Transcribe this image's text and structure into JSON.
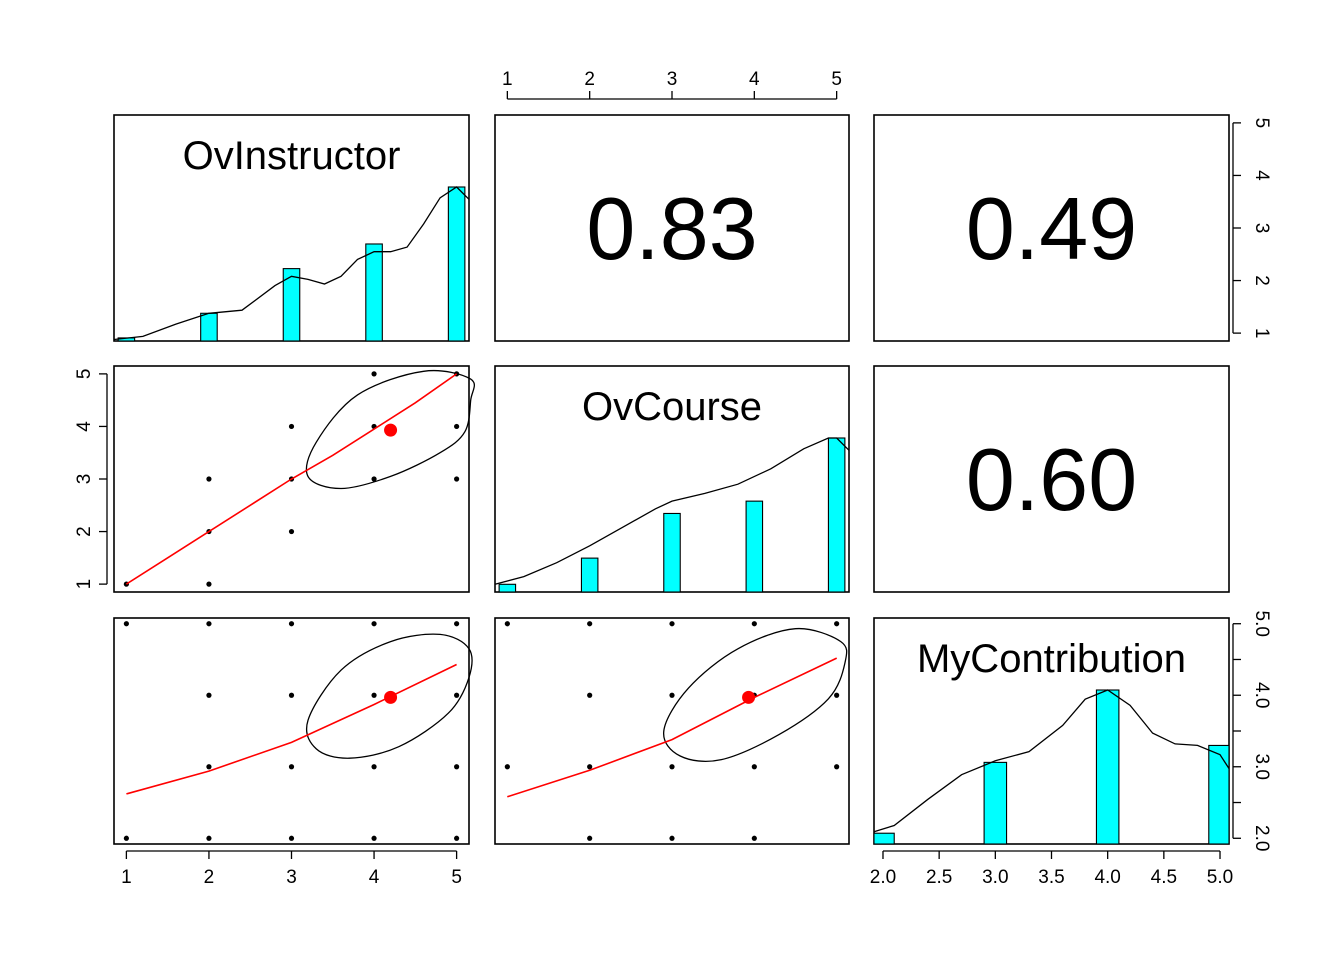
{
  "chart_data": {
    "type": "scatter",
    "layout": "scatterplot-matrix (pairs panels)",
    "variables": [
      "OvInstructor",
      "OvCourse",
      "MyContribution"
    ],
    "colors": {
      "bars": "#00ffff",
      "fit_line": "#ff0000",
      "mean_point": "#ff0000",
      "points": "#000000"
    },
    "axes": {
      "ov_ticks": [
        1,
        2,
        3,
        4,
        5
      ],
      "ov_tick_labels": [
        "1",
        "2",
        "3",
        "4",
        "5"
      ],
      "myc_ticks": [
        2.0,
        2.5,
        3.0,
        3.5,
        4.0,
        4.5,
        5.0
      ],
      "myc_tick_labels": [
        "2.0",
        "2.5",
        "3.0",
        "3.5",
        "4.0",
        "4.5",
        "5.0"
      ],
      "myc_right_ticks": [
        2.0,
        2.5,
        3.0,
        3.5,
        4.0,
        4.5,
        5.0
      ],
      "myc_right_tick_labels": [
        "2.0",
        "",
        "3.0",
        "",
        "4.0",
        "",
        "5.0"
      ],
      "ov_xlim": [
        0.85,
        5.15
      ],
      "myc_xlim": [
        1.92,
        5.08
      ]
    },
    "histograms": {
      "OvInstructor": {
        "values": [
          1,
          2,
          3,
          4,
          5
        ],
        "heights": [
          0.02,
          0.18,
          0.47,
          0.63,
          1.0
        ]
      },
      "OvCourse": {
        "values": [
          1,
          2,
          3,
          4,
          5
        ],
        "heights": [
          0.05,
          0.22,
          0.51,
          0.59,
          1.0
        ]
      },
      "MyContribution": {
        "values": [
          2,
          3,
          4,
          5
        ],
        "heights": [
          0.07,
          0.53,
          1.0,
          0.64
        ]
      }
    },
    "densities": {
      "OvInstructor": {
        "x": [
          0.85,
          1.2,
          1.6,
          2.0,
          2.4,
          2.8,
          3.0,
          3.2,
          3.4,
          3.6,
          3.8,
          4.0,
          4.2,
          4.4,
          4.6,
          4.8,
          5.0,
          5.15
        ],
        "y": [
          0.01,
          0.03,
          0.11,
          0.18,
          0.2,
          0.36,
          0.42,
          0.4,
          0.37,
          0.42,
          0.53,
          0.58,
          0.58,
          0.61,
          0.76,
          0.93,
          1.0,
          0.92
        ]
      },
      "OvCourse": {
        "x": [
          0.85,
          1.2,
          1.6,
          2.0,
          2.4,
          2.8,
          3.0,
          3.4,
          3.8,
          4.2,
          4.6,
          4.9,
          5.0,
          5.15
        ],
        "y": [
          0.05,
          0.1,
          0.19,
          0.3,
          0.42,
          0.54,
          0.59,
          0.64,
          0.7,
          0.8,
          0.93,
          1.0,
          1.0,
          0.92
        ]
      },
      "MyContribution": {
        "x": [
          1.92,
          2.1,
          2.4,
          2.7,
          3.0,
          3.3,
          3.6,
          3.8,
          4.0,
          4.2,
          4.4,
          4.6,
          4.8,
          5.0,
          5.08
        ],
        "y": [
          0.08,
          0.12,
          0.29,
          0.45,
          0.54,
          0.6,
          0.77,
          0.94,
          1.0,
          0.9,
          0.72,
          0.65,
          0.64,
          0.58,
          0.49
        ]
      }
    },
    "correlations": [
      {
        "pair": [
          "OvInstructor",
          "OvCourse"
        ],
        "label": "0.83"
      },
      {
        "pair": [
          "OvInstructor",
          "MyContribution"
        ],
        "label": "0.49"
      },
      {
        "pair": [
          "OvCourse",
          "MyContribution"
        ],
        "label": "0.60"
      }
    ],
    "scatter_panels": [
      {
        "x": "OvInstructor",
        "y": "OvCourse",
        "points": [
          [
            1,
            1
          ],
          [
            2,
            1
          ],
          [
            2,
            2
          ],
          [
            2,
            3
          ],
          [
            3,
            2
          ],
          [
            3,
            3
          ],
          [
            3,
            4
          ],
          [
            4,
            3
          ],
          [
            4,
            4
          ],
          [
            4,
            5
          ],
          [
            5,
            3
          ],
          [
            5,
            4
          ],
          [
            5,
            5
          ]
        ],
        "mean": [
          4.2,
          3.93
        ],
        "fit": [
          [
            1,
            1
          ],
          [
            1.5,
            1.5
          ],
          [
            2,
            2
          ],
          [
            2.5,
            2.5
          ],
          [
            3,
            3
          ],
          [
            3.5,
            3.45
          ],
          [
            4,
            3.95
          ],
          [
            4.5,
            4.45
          ],
          [
            5,
            5
          ]
        ],
        "ellipse": {
          "center": [
            4.2,
            3.93
          ],
          "points": [
            [
              5.17,
              4.9
            ],
            [
              4.6,
              5.05
            ],
            [
              3.8,
              4.6
            ],
            [
              3.3,
              3.7
            ],
            [
              3.2,
              3.05
            ],
            [
              3.6,
              2.82
            ],
            [
              4.2,
              3.05
            ],
            [
              4.8,
              3.5
            ],
            [
              5.1,
              3.9
            ],
            [
              5.17,
              4.5
            ]
          ]
        }
      },
      {
        "x": "OvInstructor",
        "y": "MyContribution",
        "points": [
          [
            1,
            2
          ],
          [
            1,
            5
          ],
          [
            2,
            2
          ],
          [
            2,
            3
          ],
          [
            2,
            4
          ],
          [
            2,
            5
          ],
          [
            3,
            2
          ],
          [
            3,
            3
          ],
          [
            3,
            4
          ],
          [
            3,
            5
          ],
          [
            4,
            2
          ],
          [
            4,
            3
          ],
          [
            4,
            4
          ],
          [
            4,
            5
          ],
          [
            5,
            2
          ],
          [
            5,
            3
          ],
          [
            5,
            4
          ],
          [
            5,
            5
          ]
        ],
        "mean": [
          4.2,
          3.97
        ],
        "fit": [
          [
            1,
            2.62
          ],
          [
            2,
            2.94
          ],
          [
            3,
            3.34
          ],
          [
            4,
            3.87
          ],
          [
            5,
            4.43
          ]
        ],
        "ellipse": {
          "center": [
            4.2,
            3.97
          ],
          "points": [
            [
              5.15,
              4.65
            ],
            [
              4.8,
              4.85
            ],
            [
              4.2,
              4.75
            ],
            [
              3.6,
              4.35
            ],
            [
              3.2,
              3.65
            ],
            [
              3.3,
              3.25
            ],
            [
              3.7,
              3.12
            ],
            [
              4.3,
              3.28
            ],
            [
              4.9,
              3.75
            ],
            [
              5.15,
              4.25
            ]
          ]
        }
      },
      {
        "x": "OvCourse",
        "y": "MyContribution",
        "points": [
          [
            1,
            3
          ],
          [
            1,
            5
          ],
          [
            2,
            2
          ],
          [
            2,
            3
          ],
          [
            2,
            4
          ],
          [
            2,
            5
          ],
          [
            3,
            2
          ],
          [
            3,
            3
          ],
          [
            3,
            4
          ],
          [
            3,
            5
          ],
          [
            4,
            2
          ],
          [
            4,
            3
          ],
          [
            4,
            4
          ],
          [
            4,
            5
          ],
          [
            5,
            3
          ],
          [
            5,
            4
          ],
          [
            5,
            5
          ]
        ],
        "mean": [
          3.93,
          3.97
        ],
        "fit": [
          [
            1,
            2.58
          ],
          [
            2,
            2.95
          ],
          [
            3,
            3.38
          ],
          [
            4,
            3.97
          ],
          [
            5,
            4.52
          ]
        ],
        "ellipse": {
          "center": [
            3.93,
            3.97
          ],
          "points": [
            [
              5.05,
              4.75
            ],
            [
              4.5,
              4.93
            ],
            [
              3.8,
              4.65
            ],
            [
              3.2,
              4.1
            ],
            [
              2.9,
              3.5
            ],
            [
              3.1,
              3.15
            ],
            [
              3.6,
              3.1
            ],
            [
              4.3,
              3.45
            ],
            [
              4.9,
              3.95
            ],
            [
              5.1,
              4.45
            ]
          ]
        }
      }
    ]
  }
}
